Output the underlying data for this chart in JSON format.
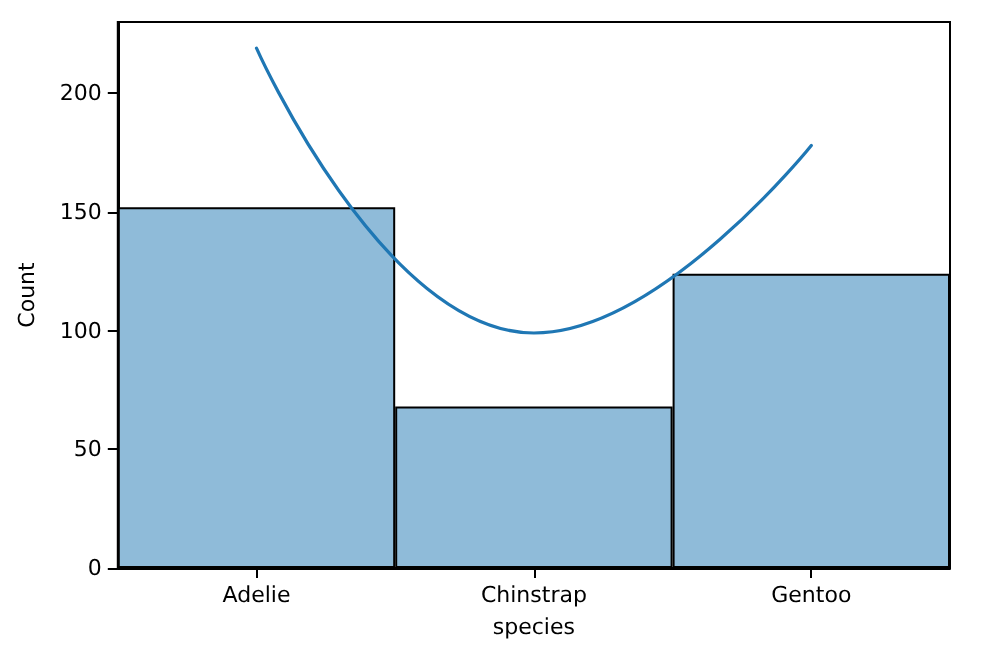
{
  "chart_data": {
    "type": "bar",
    "xlabel": "species",
    "ylabel": "Count",
    "categories": [
      "Adelie",
      "Chinstrap",
      "Gentoo"
    ],
    "series": [
      {
        "color": "#8fbbd9",
        "values": [
          152,
          68,
          124
        ]
      },
      {
        "type": "line",
        "color": "#1f77b4",
        "values": [
          219,
          99,
          178
        ]
      }
    ],
    "ylim": [
      0,
      230
    ],
    "yticks": [
      0,
      50,
      100,
      150,
      200
    ],
    "marker": "none"
  }
}
